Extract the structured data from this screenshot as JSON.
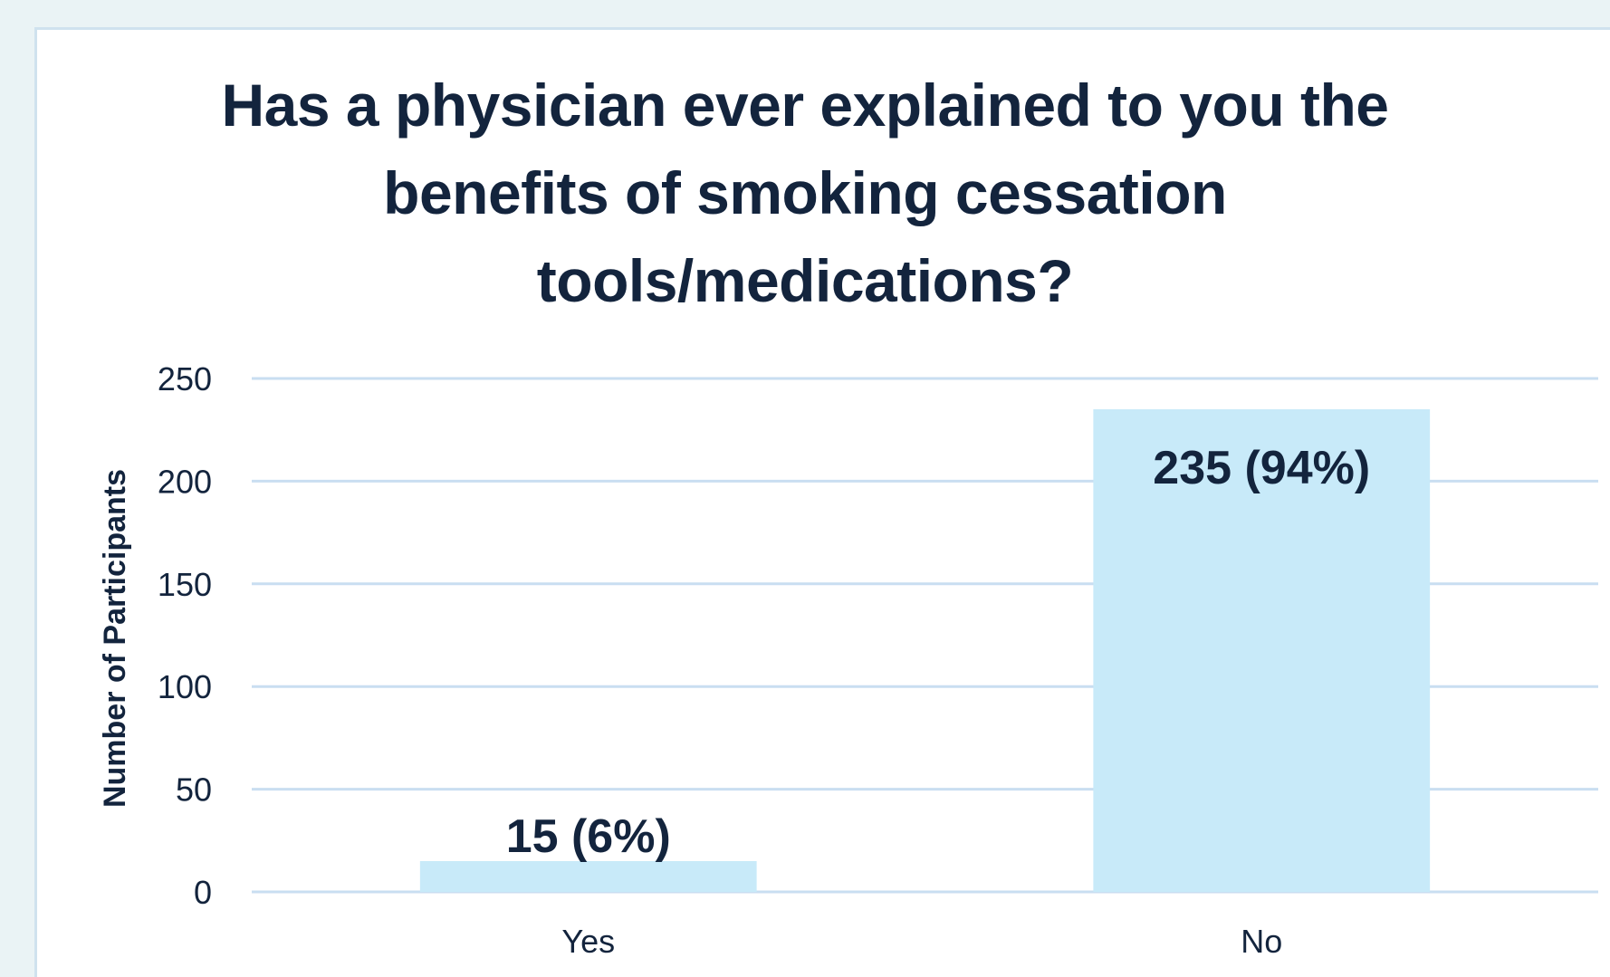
{
  "chart_data": {
    "type": "bar",
    "title_lines": [
      "Has a physician ever explained to you the",
      "benefits of smoking cessation",
      "tools/medications?"
    ],
    "categories": [
      "Yes",
      "No"
    ],
    "values": [
      15,
      235
    ],
    "data_labels": [
      "15 (6%)",
      "235 (94%)"
    ],
    "xlabel": "",
    "ylabel": "Number of Participants",
    "ylim": [
      0,
      250
    ],
    "yticks": [
      0,
      50,
      100,
      150,
      200,
      250
    ],
    "grid": true,
    "legend": "none",
    "colors": {
      "bar": "#c8eaf9",
      "grid": "#c9def1",
      "text": "#13243d",
      "background": "#ffffff",
      "page": "#eaf3f5"
    }
  }
}
